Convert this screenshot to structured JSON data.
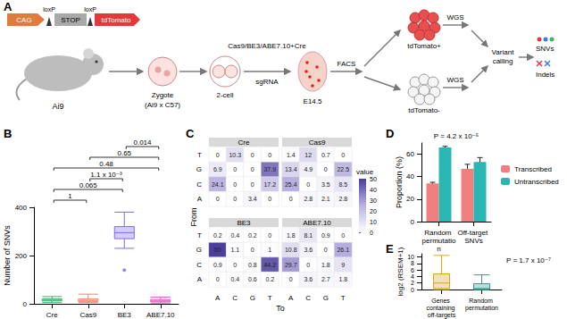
{
  "diagram": {
    "label": "A",
    "construct": [
      "CAG",
      "loxP",
      "loxP",
      "STOP",
      "tdTomato"
    ],
    "mouse": "Ai9",
    "zygote": [
      "Zygote",
      "(Ai9 x C57)"
    ],
    "two_cell": "2-cell",
    "injection": "Cas9/BE3/ABE7.10+Cre",
    "guide": "sgRNA",
    "embryo": "E14.5",
    "sorting": "FACS",
    "positive": "tdTomato+",
    "negative": "tdTomato-",
    "sequencing": "WGS",
    "calling": [
      "Variant",
      "calling"
    ],
    "outputs": [
      "SNVs",
      "Indels"
    ]
  },
  "chart_data": [
    {
      "label": "B",
      "type": "boxplot",
      "categories": [
        "Cre",
        "Cas9",
        "BE3",
        "ABE7.10"
      ],
      "colors": [
        "#3cb371",
        "#f4846f",
        "#7b68ee",
        "#e060c0"
      ],
      "boxes": [
        [
          5,
          12,
          15,
          20,
          30
        ],
        [
          5,
          10,
          14,
          20,
          40
        ],
        [
          230,
          270,
          295,
          320,
          380
        ],
        [
          3,
          8,
          12,
          18,
          28
        ]
      ],
      "outliers": [
        {
          "category": "BE3",
          "value": 140
        }
      ],
      "ylabel": "Number of SNVs",
      "ylim": [
        0,
        400
      ],
      "yticks": [
        0,
        200,
        400
      ],
      "comparisons": [
        {
          "pair": [
            "Cre",
            "Cas9"
          ],
          "label": "1"
        },
        {
          "pair": [
            "Cre",
            "BE3"
          ],
          "label": "0.065"
        },
        {
          "pair": [
            "Cas9",
            "BE3"
          ],
          "label": "1.1 x 10⁻³"
        },
        {
          "pair": [
            "Cre",
            "ABE7.10"
          ],
          "label": "0.48"
        },
        {
          "pair": [
            "Cas9",
            "ABE7.10"
          ],
          "label": "0.65"
        },
        {
          "pair": [
            "BE3",
            "ABE7.10"
          ],
          "label": "0.014"
        }
      ]
    },
    {
      "label": "C",
      "type": "heatmap",
      "xlabel": "To",
      "ylabel": "From",
      "categories": [
        "A",
        "C",
        "G",
        "T"
      ],
      "rows": [
        "T",
        "G",
        "C",
        "A"
      ],
      "data_labels": true,
      "panels": [
        {
          "title": "Cre",
          "cells": [
            [
              0,
              10.3,
              0,
              0
            ],
            [
              6.9,
              0,
              0,
              37.9
            ],
            [
              24.1,
              0,
              0,
              17.2
            ],
            [
              0,
              0,
              3.4,
              0
            ]
          ]
        },
        {
          "title": "Cas9",
          "cells": [
            [
              1.4,
              12,
              0.7,
              0
            ],
            [
              13.4,
              4.9,
              0,
              22.5
            ],
            [
              25.4,
              0,
              3.5,
              8.5
            ],
            [
              0,
              2.8,
              2.1,
              2.8
            ]
          ]
        },
        {
          "title": "BE3",
          "cells": [
            [
              0.2,
              0.4,
              0.2,
              0
            ],
            [
              50,
              1.1,
              0,
              1
            ],
            [
              0.9,
              0,
              0.8,
              44.2
            ],
            [
              0,
              0.4,
              0.6,
              0.2
            ]
          ]
        },
        {
          "title": "ABE7.10",
          "cells": [
            [
              1.8,
              8.1,
              0.9,
              0
            ],
            [
              10.8,
              3.6,
              0,
              26.1
            ],
            [
              29.7,
              0,
              1.8,
              9
            ],
            [
              0,
              3.6,
              2.7,
              1.8
            ]
          ]
        }
      ],
      "colorbar": {
        "title": "value",
        "range": [
          0,
          50
        ],
        "ticks": [
          0,
          10,
          20,
          30,
          40,
          50
        ]
      }
    },
    {
      "label": "D",
      "type": "bar",
      "categories": [
        "Random permutation",
        "Off-target SNVs"
      ],
      "series": [
        {
          "name": "Transcribed",
          "color": "#f08080",
          "values": [
            34,
            47
          ],
          "errors": [
            1,
            4
          ]
        },
        {
          "name": "Untranscribed",
          "color": "#2ab7b3",
          "values": [
            66,
            53
          ],
          "errors": [
            1,
            4
          ]
        }
      ],
      "ylabel": "Proportion (%)",
      "ylim": [
        0,
        70
      ],
      "yticks": [
        0,
        20,
        40,
        60
      ],
      "legend": "right",
      "annotation": "P = 4.2 x 10⁻⁵"
    },
    {
      "label": "E",
      "type": "boxplot",
      "categories": [
        "Genes containing off-targets",
        "Random permutation"
      ],
      "colors": [
        "#d9a520",
        "#2a9d8f"
      ],
      "boxes": [
        [
          0,
          0.3,
          2,
          4.8,
          10.5
        ],
        [
          0,
          0,
          0.3,
          1.8,
          4.5
        ]
      ],
      "ylabel": "log2 (RSEM+1)",
      "ylim": [
        0,
        11
      ],
      "yticks": [
        0,
        2,
        4,
        6,
        8,
        10
      ],
      "annotation": "P = 1.7 x 10⁻⁷"
    }
  ]
}
